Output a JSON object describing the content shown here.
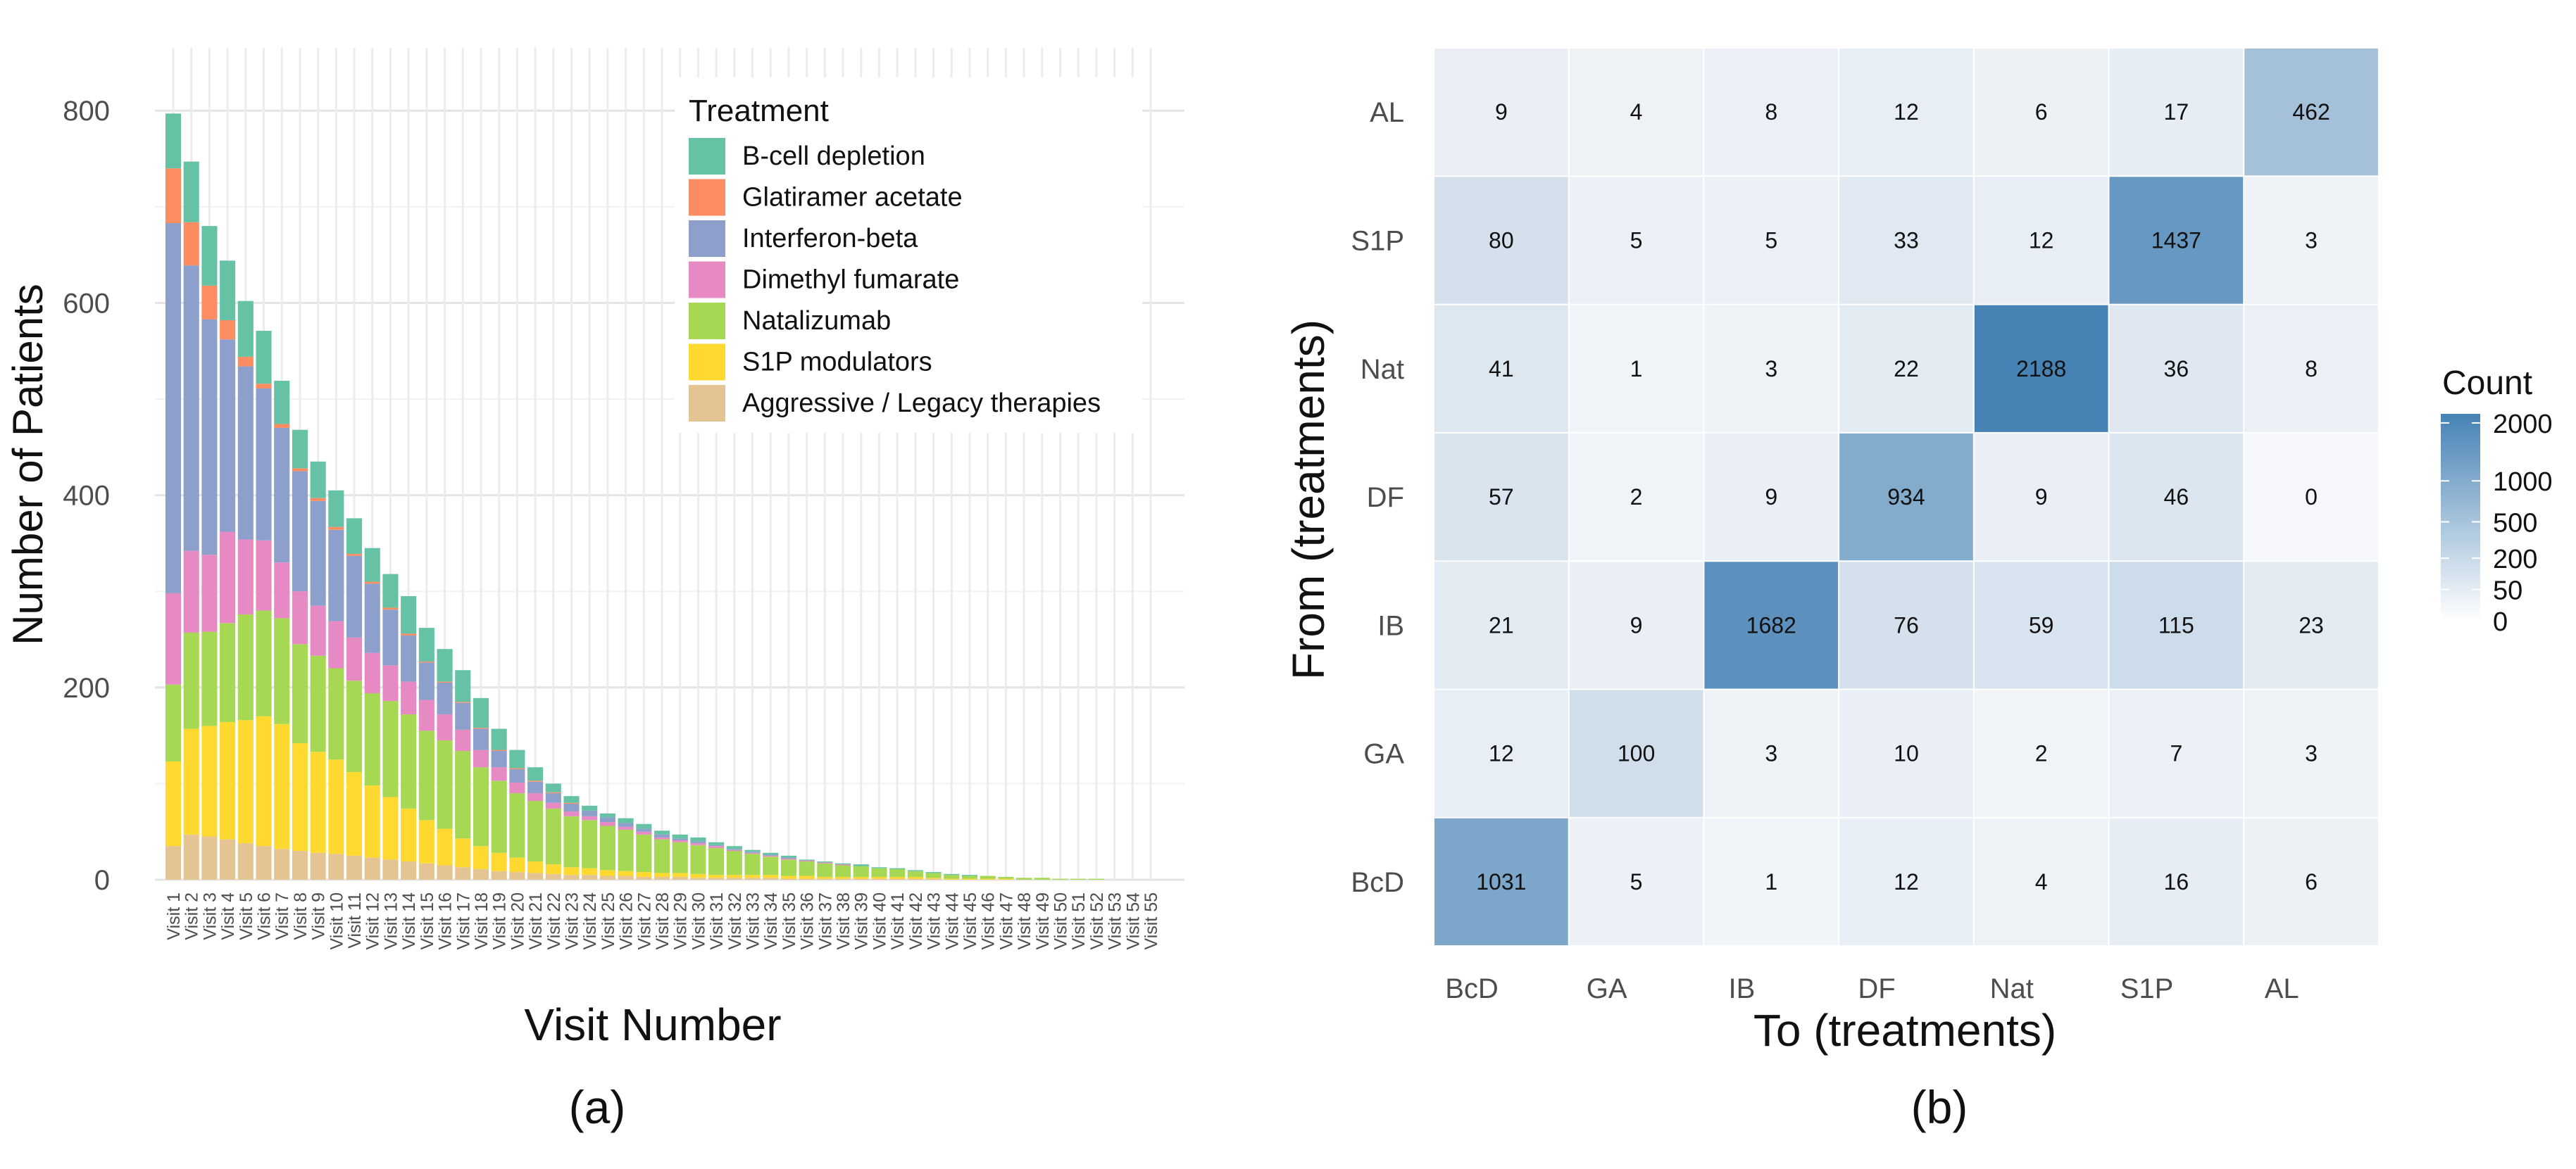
{
  "figure": {
    "panel_a_caption": "(a)",
    "panel_b_caption": "(b)"
  },
  "chart_data": [
    {
      "type": "bar",
      "stacked": true,
      "xlabel": "Visit Number",
      "ylabel": "Number of Patients",
      "ylim": [
        0,
        860
      ],
      "yticks": [
        0,
        200,
        400,
        600,
        800
      ],
      "grid": true,
      "legend": {
        "title": "Treatment",
        "position": "top-right inside"
      },
      "categories": [
        "Visit 1",
        "Visit 2",
        "Visit 3",
        "Visit 4",
        "Visit 5",
        "Visit 6",
        "Visit 7",
        "Visit 8",
        "Visit 9",
        "Visit 10",
        "Visit 11",
        "Visit 12",
        "Visit 13",
        "Visit 14",
        "Visit 15",
        "Visit 16",
        "Visit 17",
        "Visit 18",
        "Visit 19",
        "Visit 20",
        "Visit 21",
        "Visit 22",
        "Visit 23",
        "Visit 24",
        "Visit 25",
        "Visit 26",
        "Visit 27",
        "Visit 28",
        "Visit 29",
        "Visit 30",
        "Visit 31",
        "Visit 32",
        "Visit 33",
        "Visit 34",
        "Visit 35",
        "Visit 36",
        "Visit 37",
        "Visit 38",
        "Visit 39",
        "Visit 40",
        "Visit 41",
        "Visit 42",
        "Visit 43",
        "Visit 44",
        "Visit 45",
        "Visit 46",
        "Visit 47",
        "Visit 48",
        "Visit 49",
        "Visit 50",
        "Visit 51",
        "Visit 52",
        "Visit 53",
        "Visit 54",
        "Visit 55"
      ],
      "series": [
        {
          "name": "Aggressive / Legacy therapies",
          "color": "#E5C494",
          "values": [
            35,
            47,
            45,
            42,
            38,
            35,
            32,
            30,
            28,
            27,
            25,
            23,
            21,
            19,
            17,
            15,
            13,
            11,
            9,
            8,
            7,
            6,
            5,
            5,
            4,
            4,
            3,
            3,
            3,
            2,
            2,
            2,
            2,
            2,
            1,
            1,
            1,
            1,
            1,
            1,
            1,
            1,
            1,
            0,
            0,
            0,
            0,
            0,
            0,
            0,
            0,
            0,
            0,
            0,
            0
          ]
        },
        {
          "name": "S1P modulators",
          "color": "#FFD92F",
          "values": [
            88,
            110,
            115,
            122,
            128,
            135,
            130,
            112,
            105,
            98,
            87,
            75,
            65,
            55,
            45,
            38,
            30,
            24,
            19,
            15,
            12,
            10,
            8,
            7,
            6,
            5,
            5,
            4,
            4,
            4,
            3,
            3,
            3,
            3,
            3,
            3,
            2,
            2,
            2,
            2,
            2,
            2,
            1,
            1,
            1,
            1,
            1,
            0,
            0,
            0,
            0,
            0,
            0,
            0,
            0
          ]
        },
        {
          "name": "Natalizumab",
          "color": "#A6D854",
          "values": [
            80,
            100,
            98,
            103,
            110,
            110,
            110,
            103,
            100,
            95,
            95,
            96,
            100,
            98,
            93,
            92,
            91,
            82,
            75,
            67,
            63,
            58,
            53,
            50,
            46,
            43,
            39,
            35,
            32,
            30,
            28,
            25,
            22,
            19,
            17,
            15,
            14,
            12,
            11,
            9,
            8,
            6,
            5,
            4,
            3,
            3,
            2,
            2,
            2,
            1,
            1,
            1,
            0,
            0,
            0
          ]
        },
        {
          "name": "Dimethyl fumarate",
          "color": "#E78AC3",
          "values": [
            95,
            85,
            80,
            95,
            78,
            73,
            58,
            55,
            52,
            49,
            45,
            42,
            37,
            34,
            32,
            27,
            22,
            18,
            14,
            11,
            8,
            6,
            5,
            4,
            4,
            3,
            3,
            2,
            2,
            2,
            2,
            1,
            1,
            1,
            1,
            1,
            1,
            1,
            0,
            0,
            0,
            0,
            0,
            0,
            0,
            0,
            0,
            0,
            0,
            0,
            0,
            0,
            0,
            0,
            0
          ]
        },
        {
          "name": "Interferon-beta",
          "color": "#8DA0CB",
          "values": [
            385,
            297,
            245,
            200,
            180,
            158,
            140,
            125,
            109,
            95,
            85,
            72,
            58,
            48,
            39,
            33,
            28,
            22,
            17,
            14,
            12,
            10,
            8,
            6,
            5,
            4,
            3,
            3,
            2,
            2,
            1,
            1,
            1,
            1,
            1,
            0,
            0,
            0,
            0,
            0,
            0,
            0,
            0,
            0,
            0,
            0,
            0,
            0,
            0,
            0,
            0,
            0,
            0,
            0,
            0
          ]
        },
        {
          "name": "Glatiramer acetate",
          "color": "#FC8D62",
          "values": [
            57,
            45,
            35,
            20,
            10,
            5,
            4,
            3,
            3,
            3,
            2,
            2,
            2,
            2,
            1,
            1,
            1,
            1,
            1,
            1,
            1,
            1,
            1,
            0,
            0,
            0,
            0,
            0,
            0,
            0,
            0,
            0,
            0,
            0,
            0,
            0,
            0,
            0,
            0,
            0,
            0,
            0,
            0,
            0,
            0,
            0,
            0,
            0,
            0,
            0,
            0,
            0,
            0,
            0,
            0
          ]
        },
        {
          "name": "B-cell depletion",
          "color": "#66C2A5",
          "values": [
            57,
            63,
            62,
            62,
            58,
            55,
            45,
            40,
            38,
            38,
            37,
            35,
            35,
            39,
            35,
            34,
            33,
            31,
            22,
            19,
            14,
            9,
            7,
            5,
            4,
            5,
            5,
            4,
            4,
            4,
            3,
            3,
            2,
            2,
            2,
            1,
            1,
            1,
            2,
            1,
            1,
            1,
            1,
            1,
            1,
            0,
            0,
            0,
            0,
            0,
            0,
            0,
            0,
            0,
            0
          ]
        }
      ],
      "legend_order": [
        "B-cell depletion",
        "Glatiramer acetate",
        "Interferon-beta",
        "Dimethyl fumarate",
        "Natalizumab",
        "S1P modulators",
        "Aggressive / Legacy therapies"
      ]
    },
    {
      "type": "heatmap",
      "xlabel": "To (treatments)",
      "ylabel": "From (treatments)",
      "x_categories": [
        "BcD",
        "GA",
        "IB",
        "DF",
        "Nat",
        "S1P",
        "AL"
      ],
      "y_categories": [
        "AL",
        "S1P",
        "Nat",
        "DF",
        "IB",
        "GA",
        "BcD"
      ],
      "values": [
        [
          9,
          4,
          8,
          12,
          6,
          17,
          462
        ],
        [
          80,
          5,
          5,
          33,
          12,
          1437,
          3
        ],
        [
          41,
          1,
          3,
          22,
          2188,
          36,
          8
        ],
        [
          57,
          2,
          9,
          934,
          9,
          46,
          0
        ],
        [
          21,
          9,
          1682,
          76,
          59,
          115,
          23
        ],
        [
          12,
          100,
          3,
          10,
          2,
          7,
          3
        ],
        [
          1031,
          5,
          1,
          12,
          4,
          16,
          6
        ]
      ],
      "colorbar": {
        "title": "Count",
        "ticks": [
          0,
          50,
          200,
          500,
          1000,
          2000
        ],
        "scale": "sqrt",
        "low_color": "#FFFFFF",
        "high_color": "#4682B4",
        "max": 2188
      }
    }
  ]
}
